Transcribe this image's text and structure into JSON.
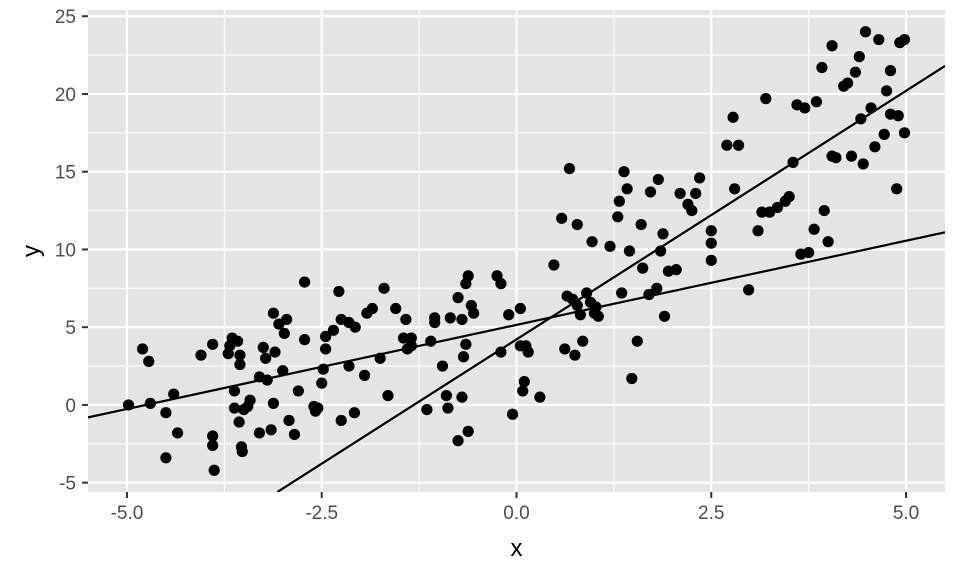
{
  "chart_data": {
    "type": "scatter",
    "title": "",
    "xlabel": "x",
    "ylabel": "y",
    "xlim": [
      -5.5,
      5.5
    ],
    "ylim": [
      -5.6,
      25.4
    ],
    "x_ticks": [
      {
        "value": -5.0,
        "label": "-5.0"
      },
      {
        "value": -2.5,
        "label": "-2.5"
      },
      {
        "value": 0.0,
        "label": "0.0"
      },
      {
        "value": 2.5,
        "label": "2.5"
      },
      {
        "value": 5.0,
        "label": "5.0"
      }
    ],
    "y_ticks": [
      {
        "value": -5,
        "label": "-5"
      },
      {
        "value": 0,
        "label": "0"
      },
      {
        "value": 5,
        "label": "5"
      },
      {
        "value": 10,
        "label": "10"
      },
      {
        "value": 15,
        "label": "15"
      },
      {
        "value": 20,
        "label": "20"
      },
      {
        "value": 25,
        "label": "25"
      }
    ],
    "grid": true,
    "legend": "none",
    "colors": {
      "panel_background": "#e5e5e5",
      "grid": "#ffffff",
      "points": "#000000",
      "lines": "#000000",
      "tick_text": "#4d4d4d",
      "axis_title": "#000000"
    },
    "points": [
      [
        -4.98,
        0.0
      ],
      [
        -4.8,
        3.6
      ],
      [
        -4.72,
        2.8
      ],
      [
        -4.7,
        0.1
      ],
      [
        -4.5,
        -0.5
      ],
      [
        -4.5,
        -3.4
      ],
      [
        -4.4,
        0.7
      ],
      [
        -4.35,
        -1.8
      ],
      [
        -4.05,
        3.2
      ],
      [
        -3.9,
        3.9
      ],
      [
        -3.9,
        -2.0
      ],
      [
        -3.9,
        -2.6
      ],
      [
        -3.88,
        -4.2
      ],
      [
        -3.7,
        3.3
      ],
      [
        -3.68,
        3.8
      ],
      [
        -3.65,
        4.3
      ],
      [
        -3.62,
        0.9
      ],
      [
        -3.62,
        -0.2
      ],
      [
        -3.58,
        4.1
      ],
      [
        -3.56,
        -1.1
      ],
      [
        -3.55,
        3.2
      ],
      [
        -3.55,
        2.6
      ],
      [
        -3.53,
        -2.7
      ],
      [
        -3.52,
        -3.0
      ],
      [
        -3.5,
        -0.3
      ],
      [
        -3.45,
        -0.1
      ],
      [
        -3.42,
        0.3
      ],
      [
        -3.3,
        -1.8
      ],
      [
        -3.3,
        1.8
      ],
      [
        -3.25,
        3.7
      ],
      [
        -3.22,
        3.0
      ],
      [
        -3.2,
        1.6
      ],
      [
        -3.15,
        -1.6
      ],
      [
        -3.12,
        0.1
      ],
      [
        -3.12,
        5.9
      ],
      [
        -3.1,
        3.4
      ],
      [
        -3.05,
        5.2
      ],
      [
        -3.0,
        2.2
      ],
      [
        -2.98,
        4.6
      ],
      [
        -2.95,
        5.5
      ],
      [
        -2.92,
        -1.0
      ],
      [
        -2.85,
        -1.9
      ],
      [
        -2.8,
        0.9
      ],
      [
        -2.72,
        7.9
      ],
      [
        -2.72,
        4.2
      ],
      [
        -2.6,
        -0.1
      ],
      [
        -2.58,
        -0.4
      ],
      [
        -2.55,
        -0.2
      ],
      [
        -2.5,
        1.4
      ],
      [
        -2.48,
        2.3
      ],
      [
        -2.45,
        4.4
      ],
      [
        -2.45,
        3.6
      ],
      [
        -2.35,
        4.8
      ],
      [
        -2.28,
        7.3
      ],
      [
        -2.25,
        5.5
      ],
      [
        -2.25,
        -1.0
      ],
      [
        -2.15,
        2.5
      ],
      [
        -2.15,
        5.3
      ],
      [
        -2.08,
        -0.5
      ],
      [
        -2.07,
        5.0
      ],
      [
        -1.95,
        1.9
      ],
      [
        -1.92,
        5.9
      ],
      [
        -1.85,
        6.2
      ],
      [
        -1.75,
        3.0
      ],
      [
        -1.7,
        7.5
      ],
      [
        -1.65,
        0.6
      ],
      [
        -1.55,
        6.2
      ],
      [
        -1.45,
        4.3
      ],
      [
        -1.42,
        5.5
      ],
      [
        -1.4,
        3.6
      ],
      [
        -1.35,
        4.3
      ],
      [
        -1.35,
        3.8
      ],
      [
        -1.15,
        -0.3
      ],
      [
        -1.1,
        4.1
      ],
      [
        -1.05,
        5.6
      ],
      [
        -1.05,
        5.3
      ],
      [
        -0.95,
        2.5
      ],
      [
        -0.9,
        0.6
      ],
      [
        -0.88,
        -0.2
      ],
      [
        -0.85,
        5.6
      ],
      [
        -0.75,
        6.9
      ],
      [
        -0.75,
        -2.3
      ],
      [
        -0.7,
        5.5
      ],
      [
        -0.68,
        3.1
      ],
      [
        -0.65,
        7.8
      ],
      [
        -0.65,
        3.9
      ],
      [
        -0.62,
        -1.7
      ],
      [
        -0.62,
        8.3
      ],
      [
        -0.58,
        6.4
      ],
      [
        -0.55,
        5.9
      ],
      [
        -0.7,
        0.5
      ],
      [
        -0.25,
        8.3
      ],
      [
        -0.2,
        7.8
      ],
      [
        -0.2,
        3.4
      ],
      [
        -0.1,
        5.8
      ],
      [
        -0.05,
        -0.6
      ],
      [
        0.05,
        6.2
      ],
      [
        0.05,
        3.8
      ],
      [
        0.08,
        0.9
      ],
      [
        0.1,
        1.5
      ],
      [
        0.12,
        3.8
      ],
      [
        0.15,
        3.4
      ],
      [
        0.3,
        0.5
      ],
      [
        0.48,
        9.0
      ],
      [
        0.58,
        12.0
      ],
      [
        0.62,
        3.6
      ],
      [
        0.65,
        7.0
      ],
      [
        0.68,
        15.2
      ],
      [
        0.72,
        6.8
      ],
      [
        0.75,
        3.2
      ],
      [
        0.78,
        6.4
      ],
      [
        0.78,
        11.6
      ],
      [
        0.82,
        5.8
      ],
      [
        0.85,
        4.1
      ],
      [
        0.9,
        7.2
      ],
      [
        0.95,
        6.6
      ],
      [
        0.97,
        10.5
      ],
      [
        1.0,
        5.9
      ],
      [
        1.02,
        6.3
      ],
      [
        1.05,
        5.7
      ],
      [
        1.2,
        10.2
      ],
      [
        1.3,
        12.1
      ],
      [
        1.32,
        13.1
      ],
      [
        1.35,
        7.2
      ],
      [
        1.38,
        15.0
      ],
      [
        1.42,
        13.9
      ],
      [
        1.45,
        9.9
      ],
      [
        1.48,
        1.7
      ],
      [
        1.55,
        4.1
      ],
      [
        1.6,
        11.6
      ],
      [
        1.62,
        8.8
      ],
      [
        1.7,
        7.1
      ],
      [
        1.72,
        13.7
      ],
      [
        1.8,
        7.5
      ],
      [
        1.82,
        14.5
      ],
      [
        1.85,
        9.9
      ],
      [
        1.88,
        11.0
      ],
      [
        1.9,
        5.7
      ],
      [
        1.95,
        8.6
      ],
      [
        2.05,
        8.7
      ],
      [
        2.1,
        13.6
      ],
      [
        2.2,
        12.9
      ],
      [
        2.25,
        12.5
      ],
      [
        2.3,
        13.6
      ],
      [
        2.35,
        14.6
      ],
      [
        2.5,
        11.2
      ],
      [
        2.5,
        10.4
      ],
      [
        2.5,
        9.3
      ],
      [
        2.7,
        16.7
      ],
      [
        2.78,
        18.5
      ],
      [
        2.8,
        13.9
      ],
      [
        2.85,
        16.7
      ],
      [
        2.98,
        7.4
      ],
      [
        3.1,
        11.2
      ],
      [
        3.15,
        12.4
      ],
      [
        3.2,
        19.7
      ],
      [
        3.25,
        12.4
      ],
      [
        3.35,
        12.7
      ],
      [
        3.45,
        13.1
      ],
      [
        3.5,
        13.4
      ],
      [
        3.55,
        15.6
      ],
      [
        3.6,
        19.3
      ],
      [
        3.65,
        9.7
      ],
      [
        3.7,
        19.1
      ],
      [
        3.75,
        9.8
      ],
      [
        3.82,
        11.3
      ],
      [
        3.85,
        19.5
      ],
      [
        3.92,
        21.7
      ],
      [
        3.95,
        12.5
      ],
      [
        4.0,
        10.5
      ],
      [
        4.05,
        16.0
      ],
      [
        4.05,
        23.1
      ],
      [
        4.1,
        15.9
      ],
      [
        4.2,
        20.5
      ],
      [
        4.25,
        20.7
      ],
      [
        4.3,
        16.0
      ],
      [
        4.35,
        21.4
      ],
      [
        4.4,
        22.4
      ],
      [
        4.42,
        18.4
      ],
      [
        4.45,
        15.5
      ],
      [
        4.48,
        24.0
      ],
      [
        4.55,
        19.1
      ],
      [
        4.6,
        16.6
      ],
      [
        4.65,
        23.5
      ],
      [
        4.72,
        17.4
      ],
      [
        4.75,
        20.2
      ],
      [
        4.8,
        21.5
      ],
      [
        4.8,
        18.7
      ],
      [
        4.88,
        13.9
      ],
      [
        4.9,
        18.6
      ],
      [
        4.92,
        23.3
      ],
      [
        4.98,
        17.5
      ],
      [
        4.98,
        23.5
      ]
    ],
    "lines": [
      {
        "x": [
          -5.5,
          5.5
        ],
        "y": [
          -0.8,
          11.1
        ]
      },
      {
        "x": [
          -3.07,
          5.5
        ],
        "y": [
          -5.6,
          21.8
        ]
      }
    ]
  }
}
